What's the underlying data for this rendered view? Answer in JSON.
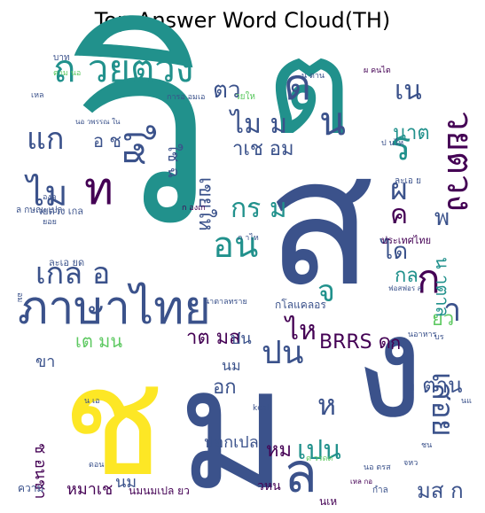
{
  "chart_data": {
    "type": "wordcloud",
    "title": "Top Answer Word Cloud(TH)",
    "colormap": [
      "#440154",
      "#3b528b",
      "#21918c",
      "#5ec962",
      "#fde725"
    ],
    "words": [
      {
        "text": "วิ",
        "weight": 100,
        "color": "#21918c"
      },
      {
        "text": "ต",
        "weight": 82,
        "color": "#21918c"
      },
      {
        "text": "ส",
        "weight": 80,
        "color": "#3b528b"
      },
      {
        "text": "ง",
        "weight": 72,
        "color": "#3b528b"
      },
      {
        "text": "ม",
        "weight": 70,
        "color": "#3b528b"
      },
      {
        "text": "ช",
        "weight": 62,
        "color": "#fde725"
      },
      {
        "text": "ภาษาไทย",
        "weight": 34,
        "color": "#3b528b"
      },
      {
        "text": "ถ วยตวง",
        "weight": 28,
        "color": "#21918c"
      },
      {
        "text": "ล",
        "weight": 30,
        "color": "#3b528b"
      },
      {
        "text": "ก",
        "weight": 28,
        "color": "#440154"
      },
      {
        "text": "ค",
        "weight": 20,
        "color": "#440154"
      },
      {
        "text": "ด",
        "weight": 30,
        "color": "#3b528b"
      },
      {
        "text": "น",
        "weight": 30,
        "color": "#3b528b"
      },
      {
        "text": "ร",
        "weight": 28,
        "color": "#21918c"
      },
      {
        "text": "วยตวง",
        "weight": 24,
        "color": "#440154"
      },
      {
        "text": "เน",
        "weight": 20,
        "color": "#3b528b"
      },
      {
        "text": "ไม",
        "weight": 24,
        "color": "#3b528b"
      },
      {
        "text": "ท",
        "weight": 26,
        "color": "#440154"
      },
      {
        "text": "ใช",
        "weight": 24,
        "color": "#3b528b"
      },
      {
        "text": "แก",
        "weight": 22,
        "color": "#3b528b"
      },
      {
        "text": "เกล อ",
        "weight": 22,
        "color": "#3b528b"
      },
      {
        "text": "อน",
        "weight": 24,
        "color": "#21918c"
      },
      {
        "text": "กร ม",
        "weight": 20,
        "color": "#21918c"
      },
      {
        "text": "ผ",
        "weight": 22,
        "color": "#3b528b"
      },
      {
        "text": "จ",
        "weight": 22,
        "color": "#21918c"
      },
      {
        "text": "ไม ม",
        "weight": 20,
        "color": "#3b528b"
      },
      {
        "text": "า",
        "weight": 22,
        "color": "#3b528b"
      },
      {
        "text": "ปน",
        "weight": 22,
        "color": "#3b528b"
      },
      {
        "text": "เปน",
        "weight": 20,
        "color": "#21918c"
      },
      {
        "text": "หม",
        "weight": 14,
        "color": "#440154"
      },
      {
        "text": "ห",
        "weight": 18,
        "color": "#3b528b"
      },
      {
        "text": "ไห",
        "weight": 18,
        "color": "#440154"
      },
      {
        "text": "เสอย",
        "weight": 20,
        "color": "#3b528b"
      },
      {
        "text": "ว ตาน",
        "weight": 16,
        "color": "#3b528b"
      },
      {
        "text": "มส ก",
        "weight": 16,
        "color": "#3b528b"
      },
      {
        "text": "ยว",
        "weight": 14,
        "color": "#5ec962"
      },
      {
        "text": "พ",
        "weight": 16,
        "color": "#3b528b"
      },
      {
        "text": "ได",
        "weight": 16,
        "color": "#3b528b"
      },
      {
        "text": "กล",
        "weight": 14,
        "color": "#21918c"
      },
      {
        "text": "น าตาล",
        "weight": 14,
        "color": "#21918c"
      },
      {
        "text": "BRRS ด",
        "weight": 14,
        "color": "#440154"
      },
      {
        "text": "าต มส",
        "weight": 14,
        "color": "#440154"
      },
      {
        "text": "ปน",
        "weight": 12,
        "color": "#3b528b"
      },
      {
        "text": "อก",
        "weight": 14,
        "color": "#3b528b"
      },
      {
        "text": "นม",
        "weight": 12,
        "color": "#3b528b"
      },
      {
        "text": "ปอกเปล",
        "weight": 12,
        "color": "#3b528b"
      },
      {
        "text": "ตว",
        "weight": 16,
        "color": "#3b528b"
      },
      {
        "text": "นาต",
        "weight": 14,
        "color": "#21918c"
      },
      {
        "text": "าเช อม",
        "weight": 14,
        "color": "#3b528b"
      },
      {
        "text": "เขยให",
        "weight": 14,
        "color": "#3b528b"
      },
      {
        "text": "ใช ฉ",
        "weight": 12,
        "color": "#3b528b"
      },
      {
        "text": "อ ช",
        "weight": 12,
        "color": "#3b528b"
      },
      {
        "text": "เต มน",
        "weight": 12,
        "color": "#5ec962"
      },
      {
        "text": "ขา",
        "weight": 12,
        "color": "#3b528b"
      },
      {
        "text": "ช อนชา",
        "weight": 12,
        "color": "#440154"
      },
      {
        "text": "หมาเช",
        "weight": 12,
        "color": "#440154"
      },
      {
        "text": "นม",
        "weight": 11,
        "color": "#3b528b"
      },
      {
        "text": "ความ",
        "weight": 9,
        "color": "#3b528b"
      },
      {
        "text": "ก",
        "weight": 14,
        "color": "#440154"
      },
      {
        "text": "ประเทศไทย",
        "weight": 8,
        "color": "#440154"
      },
      {
        "text": "กโลแคลอร",
        "weight": 8,
        "color": "#3b528b"
      },
      {
        "text": "ละเอ ยด",
        "weight": 7,
        "color": "#3b528b"
      },
      {
        "text": "วยตวง เกล",
        "weight": 7,
        "color": "#3b528b"
      },
      {
        "text": "ล กษณะเปล",
        "weight": 7,
        "color": "#3b528b"
      },
      {
        "text": "kcal",
        "weight": 6,
        "color": "#3b528b"
      },
      {
        "text": "องค",
        "weight": 6,
        "color": "#3b528b"
      },
      {
        "text": "ยอย",
        "weight": 6,
        "color": "#3b528b"
      },
      {
        "text": "นาตาลทราย",
        "weight": 6,
        "color": "#3b528b"
      },
      {
        "text": "วยให",
        "weight": 6,
        "color": "#5ec962"
      },
      {
        "text": "บาท",
        "weight": 6,
        "color": "#3b528b"
      },
      {
        "text": "ตาม นอ",
        "weight": 6,
        "color": "#5ec962"
      },
      {
        "text": "เหล",
        "weight": 6,
        "color": "#3b528b"
      },
      {
        "text": "ผ คนไต",
        "weight": 6,
        "color": "#440154"
      },
      {
        "text": "การอ อมเอ",
        "weight": 6,
        "color": "#3b528b"
      },
      {
        "text": "นอ วพรรณ ใน",
        "weight": 5,
        "color": "#3b528b"
      },
      {
        "text": "ฟอสฟอร ส",
        "weight": 5,
        "color": "#3b528b"
      },
      {
        "text": "นอาหาร",
        "weight": 6,
        "color": "#3b528b"
      },
      {
        "text": "เหล กอ",
        "weight": 5,
        "color": "#440154"
      },
      {
        "text": "จหว",
        "weight": 5,
        "color": "#3b528b"
      },
      {
        "text": "กำล",
        "weight": 6,
        "color": "#3b528b"
      },
      {
        "text": "ละเอ ย",
        "weight": 6,
        "color": "#3b528b"
      },
      {
        "text": "นเห",
        "weight": 6,
        "color": "#440154"
      },
      {
        "text": "ดอน",
        "weight": 6,
        "color": "#3b528b"
      },
      {
        "text": "นมนมเปล ยว",
        "weight": 7,
        "color": "#440154"
      },
      {
        "text": "วหน",
        "weight": 8,
        "color": "#440154"
      },
      {
        "text": "บร",
        "weight": 6,
        "color": "#3b528b"
      },
      {
        "text": "ป นไห",
        "weight": 6,
        "color": "#3b528b"
      },
      {
        "text": "น ตาน",
        "weight": 6,
        "color": "#3b528b"
      },
      {
        "text": "ต วรดด",
        "weight": 6,
        "color": "#5ec962"
      },
      {
        "text": "ก องเก",
        "weight": 6,
        "color": "#440154"
      },
      {
        "text": "นแ",
        "weight": 6,
        "color": "#3b528b"
      },
      {
        "text": "ก าไห",
        "weight": 6,
        "color": "#3b528b"
      },
      {
        "text": "น เอ",
        "weight": 6,
        "color": "#3b528b"
      },
      {
        "text": "นอ ตรส",
        "weight": 6,
        "color": "#3b528b"
      },
      {
        "text": "อม",
        "weight": 6,
        "color": "#3b528b"
      },
      {
        "text": "ชน",
        "weight": 6,
        "color": "#3b528b"
      }
    ]
  }
}
